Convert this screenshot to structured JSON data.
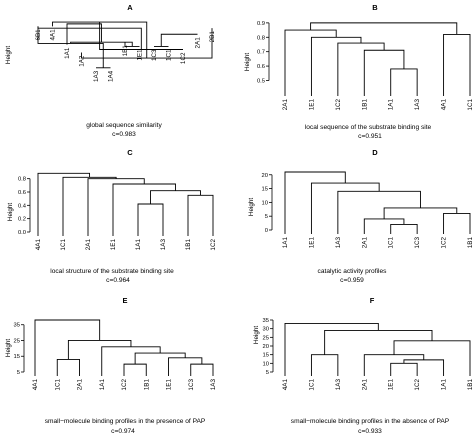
{
  "panels": [
    {
      "letter": "A",
      "caption": "global sequence similarity",
      "cvalue": "c=0.983",
      "ylabel": "Height",
      "ticks": [],
      "leaves": [
        "6B1",
        "4A1",
        "1A1",
        "1A2",
        "1A3",
        "1A4",
        "1B1",
        "1E1",
        "1C3",
        "1C1",
        "1C2",
        "2A1",
        "2B1"
      ],
      "merges": [
        [
          4,
          5,
          0.2
        ],
        [
          3,
          12,
          0.36
        ],
        [
          0,
          13,
          0.6
        ],
        [
          1,
          14,
          0.95
        ],
        [
          6,
          7,
          0.55
        ],
        [
          8,
          9,
          0.55
        ],
        [
          16,
          10,
          0.5
        ],
        [
          15,
          17,
          0.62
        ],
        [
          18,
          11,
          0.75
        ],
        [
          19,
          0,
          0.85
        ],
        [
          20,
          2,
          0.92
        ]
      ],
      "leaf_heights": [
        0.88,
        0.88,
        0.58,
        0.45,
        0.2,
        0.2,
        0.62,
        0.55,
        0.55,
        0.55,
        0.5,
        0.75,
        0.85
      ]
    },
    {
      "letter": "B",
      "caption": "local sequence of the substrate binding site",
      "cvalue": "c=0.951",
      "ylabel": "Height",
      "ticks": [
        "0.9",
        "0.8",
        "0.7",
        "0.6",
        "0.5"
      ],
      "ylim": [
        0.42,
        0.92
      ],
      "leaves": [
        "2A1",
        "1E1",
        "1C2",
        "1B1",
        "1A1",
        "1A3",
        "4A1",
        "1C1"
      ],
      "merges": [
        [
          4,
          5,
          0.58
        ],
        [
          3,
          8,
          0.71
        ],
        [
          2,
          9,
          0.76
        ],
        [
          1,
          10,
          0.8
        ],
        [
          6,
          7,
          0.82
        ],
        [
          11,
          0,
          0.85
        ],
        [
          13,
          12,
          0.9
        ]
      ]
    },
    {
      "letter": "C",
      "caption": "local structure of the substrate binding site",
      "cvalue": "c=0.964",
      "ylabel": "Height",
      "ticks": [
        "0.8",
        "0.6",
        "0.4",
        "0.2",
        "0.0"
      ],
      "ylim": [
        0.0,
        0.9
      ],
      "leaves": [
        "4A1",
        "1C1",
        "2A1",
        "1E1",
        "1A1",
        "1A3",
        "1B1",
        "1C2"
      ],
      "merges": [
        [
          4,
          5,
          0.42
        ],
        [
          6,
          7,
          0.55
        ],
        [
          8,
          9,
          0.62
        ],
        [
          3,
          10,
          0.72
        ],
        [
          2,
          11,
          0.8
        ],
        [
          1,
          12,
          0.82
        ],
        [
          0,
          13,
          0.88
        ]
      ]
    },
    {
      "letter": "D",
      "caption": "catalytic activity profiles",
      "cvalue": "c=0.959",
      "ylabel": "Height",
      "ticks": [
        "20",
        "15",
        "10",
        "5",
        "0"
      ],
      "ylim": [
        0,
        21
      ],
      "leaves": [
        "1A1",
        "1E1",
        "1A3",
        "2A1",
        "1C1",
        "1C3",
        "1C2",
        "1B1"
      ],
      "merges": [
        [
          4,
          5,
          2
        ],
        [
          3,
          8,
          4
        ],
        [
          6,
          7,
          6
        ],
        [
          9,
          10,
          8
        ],
        [
          2,
          11,
          14
        ],
        [
          1,
          12,
          17
        ],
        [
          0,
          13,
          21
        ]
      ]
    },
    {
      "letter": "E",
      "caption": "small−molecule binding profiles in the presence of PAP",
      "cvalue": "c=0.974",
      "ylabel": "Height",
      "ticks": [
        "35",
        "25",
        "15",
        "5"
      ],
      "ylim": [
        5,
        38
      ],
      "leaves": [
        "4A1",
        "1C1",
        "2A1",
        "1A1",
        "1C2",
        "1B1",
        "1E1",
        "1C3",
        "1A3"
      ],
      "merges": [
        [
          1,
          2,
          13
        ],
        [
          4,
          5,
          10
        ],
        [
          7,
          8,
          10
        ],
        [
          6,
          11,
          14
        ],
        [
          10,
          12,
          17
        ],
        [
          3,
          13,
          21
        ],
        [
          9,
          14,
          25
        ],
        [
          0,
          15,
          38
        ]
      ]
    },
    {
      "letter": "F",
      "caption": "small−molecule binding profiles in the absence of PAP",
      "cvalue": "c=0.933",
      "ylabel": "Height",
      "ticks": [
        "35",
        "30",
        "25",
        "20",
        "15",
        "10",
        "5"
      ],
      "ylim": [
        5,
        35
      ],
      "leaves": [
        "4A1",
        "1C1",
        "1A3",
        "2A1",
        "1E1",
        "1C2",
        "1A1",
        "1B1"
      ],
      "merges": [
        [
          4,
          5,
          10
        ],
        [
          8,
          6,
          12
        ],
        [
          1,
          2,
          15
        ],
        [
          3,
          9,
          15
        ],
        [
          11,
          7,
          23
        ],
        [
          12,
          10,
          29
        ],
        [
          0,
          13,
          33
        ]
      ]
    }
  ]
}
